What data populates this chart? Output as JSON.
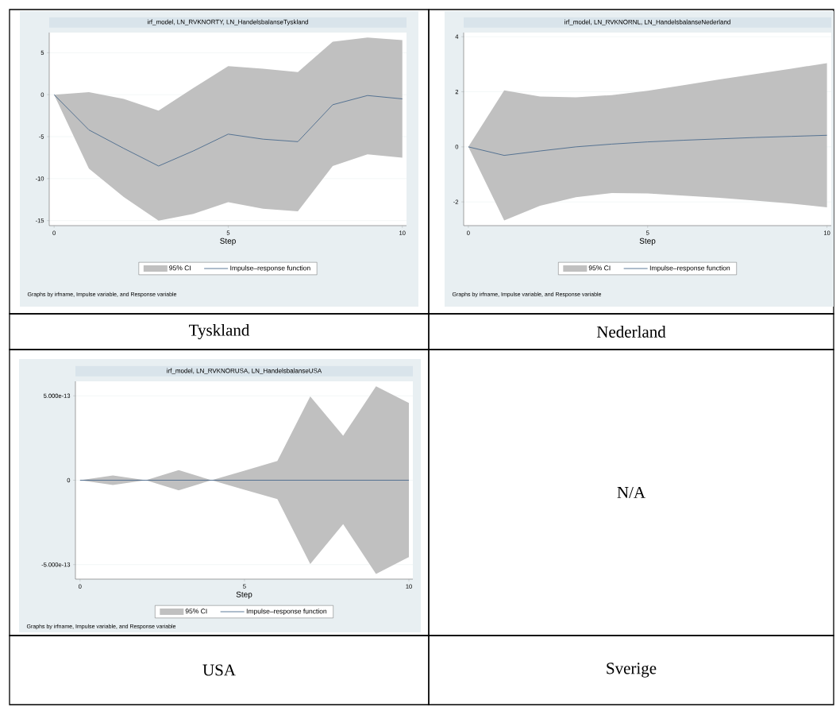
{
  "chart_data": [
    {
      "type": "line",
      "title": "irf_model, LN_RVKNORTY, LN_HandelsbalanseTyskland",
      "xlabel": "Step",
      "x": [
        0,
        1,
        2,
        3,
        4,
        5,
        6,
        7,
        8,
        9,
        10
      ],
      "xlim": [
        -0.14,
        10.12
      ],
      "xticks": [
        0,
        5,
        10
      ],
      "ylim": [
        -15.6,
        7.4
      ],
      "yticks": [
        -15,
        -10,
        -5,
        0,
        5
      ],
      "grid": "y",
      "legend": "bottom",
      "series": [
        {
          "name": "Impulse–response function",
          "type": "line",
          "color": "#4a6a8c",
          "values": [
            0,
            -4.2,
            -6.4,
            -8.5,
            -6.7,
            -4.7,
            -5.3,
            -5.6,
            -1.2,
            -0.1,
            -0.5
          ],
          "upper": [
            0,
            0.3,
            -0.5,
            -1.9,
            0.8,
            3.4,
            3.1,
            2.7,
            6.3,
            6.8,
            6.5
          ],
          "lower": [
            0,
            -8.8,
            -12.2,
            -15.0,
            -14.2,
            -12.8,
            -13.6,
            -13.9,
            -8.5,
            -7.1,
            -7.5
          ]
        }
      ],
      "annotations": [
        "95% CI",
        "Graphs by irfname, Impulse variable, and Response variable",
        "Tyskland"
      ]
    },
    {
      "type": "line",
      "title": "irf_model, LN_RVKNORNL, LN_HandelsbalanseNederland",
      "xlabel": "Step",
      "x": [
        0,
        1,
        2,
        3,
        4,
        5,
        6,
        7,
        8,
        9,
        10
      ],
      "xlim": [
        -0.13,
        10.12
      ],
      "xticks": [
        0,
        5,
        10
      ],
      "ylim": [
        -2.86,
        4.15
      ],
      "yticks": [
        -2,
        0,
        2,
        4
      ],
      "grid": "y",
      "legend": "bottom",
      "series": [
        {
          "name": "Impulse–response function",
          "type": "line",
          "color": "#4a6a8c",
          "values": [
            0,
            -0.31,
            -0.15,
            0,
            0.1,
            0.18,
            0.24,
            0.29,
            0.34,
            0.38,
            0.42
          ],
          "upper": [
            0,
            2.05,
            1.83,
            1.8,
            1.88,
            2.04,
            2.24,
            2.45,
            2.64,
            2.84,
            3.04
          ],
          "lower": [
            0,
            -2.67,
            -2.14,
            -1.83,
            -1.68,
            -1.69,
            -1.77,
            -1.85,
            -1.95,
            -2.06,
            -2.2
          ]
        }
      ],
      "annotations": [
        "95% CI",
        "Graphs by irfname, Impulse variable, and Response variable",
        "Nederland"
      ]
    },
    {
      "type": "line",
      "title": "irf_model, LN_RVKNORUSA, LN_HandelsbalanseUSA",
      "xlabel": "Step",
      "x": [
        0,
        1,
        2,
        3,
        4,
        5,
        6,
        7,
        8,
        9,
        10
      ],
      "xlim": [
        -0.14,
        10.12
      ],
      "xticks": [
        0,
        5,
        10
      ],
      "ylim": [
        -5.86e-13,
        5.86e-13
      ],
      "yticks": [
        {
          "value": -5e-13,
          "label": "-5.000e-13"
        },
        0,
        {
          "value": 5e-13,
          "label": "5.000e-13"
        }
      ],
      "grid": "y",
      "legend": "bottom",
      "series": [
        {
          "name": "Impulse–response function",
          "type": "line",
          "color": "#4a6a8c",
          "values": [
            0,
            0,
            0,
            0,
            0,
            0,
            0,
            0,
            0,
            0,
            0
          ],
          "upper": [
            0,
            2.8e-14,
            0,
            6e-14,
            0,
            5.7e-14,
            1.14e-13,
            4.97e-13,
            2.63e-13,
            5.56e-13,
            4.58e-13
          ],
          "lower": [
            0,
            -2.8e-14,
            0,
            -6e-14,
            0,
            -5.6e-14,
            -1.12e-13,
            -4.97e-13,
            -2.6e-13,
            -5.55e-13,
            -4.55e-13
          ]
        }
      ],
      "annotations": [
        "95% CI",
        "Graphs by irfname, Impulse variable, and Response variable",
        "USA"
      ]
    },
    {
      "type": "other",
      "annotations": [
        "N/A",
        "Sverige"
      ]
    }
  ]
}
